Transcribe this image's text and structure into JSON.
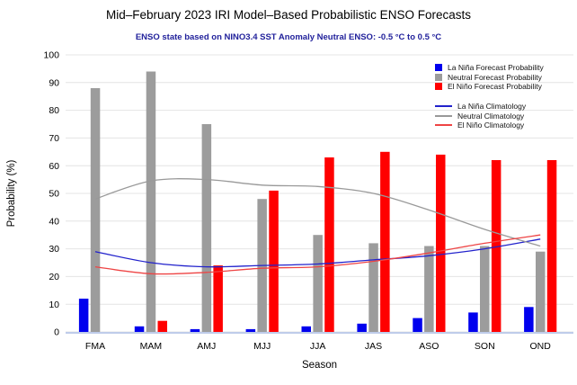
{
  "header": {
    "title": "Mid–February 2023 IRI Model–Based Probabilistic ENSO Forecasts",
    "subtitle": "ENSO state based on NINO3.4 SST Anomaly Neutral ENSO: -0.5 °C to 0.5 °C"
  },
  "colors": {
    "la_nina_bar": "#0000ee",
    "neutral_bar": "#9c9c9c",
    "el_nino_bar": "#ff0000",
    "la_nina_line": "#2222cc",
    "neutral_line": "#999999",
    "el_nino_line": "#ee4444",
    "gridline": "#e4e4e4",
    "axis_line": "#bfccea",
    "subtitle_text": "#21219b"
  },
  "legend": {
    "forecast": [
      {
        "label": "La Niña Forecast Probability"
      },
      {
        "label": "Neutral Forecast Probability"
      },
      {
        "label": "El Niño Forecast Probability"
      }
    ],
    "climatology": [
      {
        "label": "La Niña Climatology"
      },
      {
        "label": "Neutral Climatology"
      },
      {
        "label": "El Niño Climatology"
      }
    ]
  },
  "chart_data": {
    "type": "bar",
    "categories": [
      "FMA",
      "MAM",
      "AMJ",
      "MJJ",
      "JJA",
      "JAS",
      "ASO",
      "SON",
      "OND"
    ],
    "bar_series": [
      {
        "name": "La Niña Forecast Probability",
        "values": [
          12,
          2,
          1,
          1,
          2,
          3,
          5,
          7,
          9
        ]
      },
      {
        "name": "Neutral Forecast Probability",
        "values": [
          88,
          94,
          75,
          48,
          35,
          32,
          31,
          31,
          29
        ]
      },
      {
        "name": "El Niño Forecast Probability",
        "values": [
          0,
          4,
          24,
          51,
          63,
          65,
          64,
          62,
          62
        ]
      }
    ],
    "line_series": [
      {
        "name": "La Niña Climatology",
        "values": [
          29,
          25,
          23.5,
          24,
          24.5,
          26,
          27.5,
          30,
          33.5
        ]
      },
      {
        "name": "Neutral Climatology",
        "values": [
          48,
          54.5,
          55,
          53,
          52.5,
          50,
          44,
          37,
          31
        ]
      },
      {
        "name": "El Niño Climatology",
        "values": [
          23.5,
          21,
          21.5,
          23,
          23.5,
          25.5,
          28.5,
          32,
          35
        ]
      }
    ],
    "xlabel": "Season",
    "ylabel": "Probability (%)",
    "ylim": [
      0,
      100
    ],
    "yticks": [
      0,
      10,
      20,
      30,
      40,
      50,
      60,
      70,
      80,
      90,
      100
    ],
    "grid": true,
    "legend_position": "upper right"
  }
}
